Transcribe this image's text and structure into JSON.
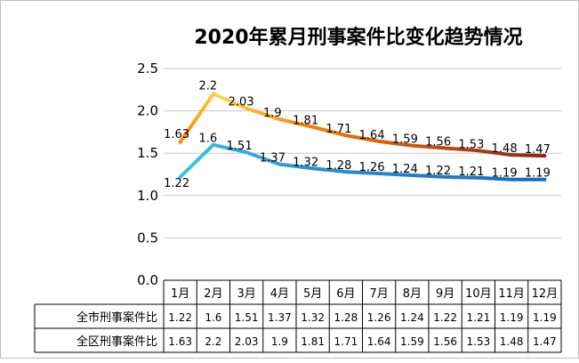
{
  "chart_data": {
    "type": "line",
    "title": "2020年累月刑事案件比变化趋势情况",
    "categories": [
      "1月",
      "2月",
      "3月",
      "4月",
      "5月",
      "6月",
      "7月",
      "8月",
      "9月",
      "10月",
      "11月",
      "12月"
    ],
    "ylim": [
      0,
      2.5
    ],
    "yticks": [
      "0.0",
      "0.5",
      "1.0",
      "1.5",
      "2.0",
      "2.5"
    ],
    "grid": true,
    "legend": "data-table",
    "series": [
      {
        "name": "全市刑事案件比",
        "values": [
          1.22,
          1.6,
          1.51,
          1.37,
          1.32,
          1.28,
          1.26,
          1.24,
          1.22,
          1.21,
          1.19,
          1.19
        ],
        "labels": [
          "1.22",
          "1.6",
          "1.51",
          "1.37",
          "1.32",
          "1.28",
          "1.26",
          "1.24",
          "1.22",
          "1.21",
          "1.19",
          "1.19"
        ],
        "color_start": "#38c5e3",
        "color_end": "#1565c0"
      },
      {
        "name": "全区刑事案件比",
        "values": [
          1.63,
          2.2,
          2.03,
          1.9,
          1.81,
          1.71,
          1.64,
          1.59,
          1.56,
          1.53,
          1.48,
          1.47
        ],
        "labels": [
          "1.63",
          "2.2",
          "2.03",
          "1.9",
          "1.81",
          "1.71",
          "1.64",
          "1.59",
          "1.56",
          "1.53",
          "1.48",
          "1.47"
        ],
        "color_start": "#ffd54f",
        "color_mid": "#f57c00",
        "color_end": "#8b1a1a"
      }
    ]
  }
}
